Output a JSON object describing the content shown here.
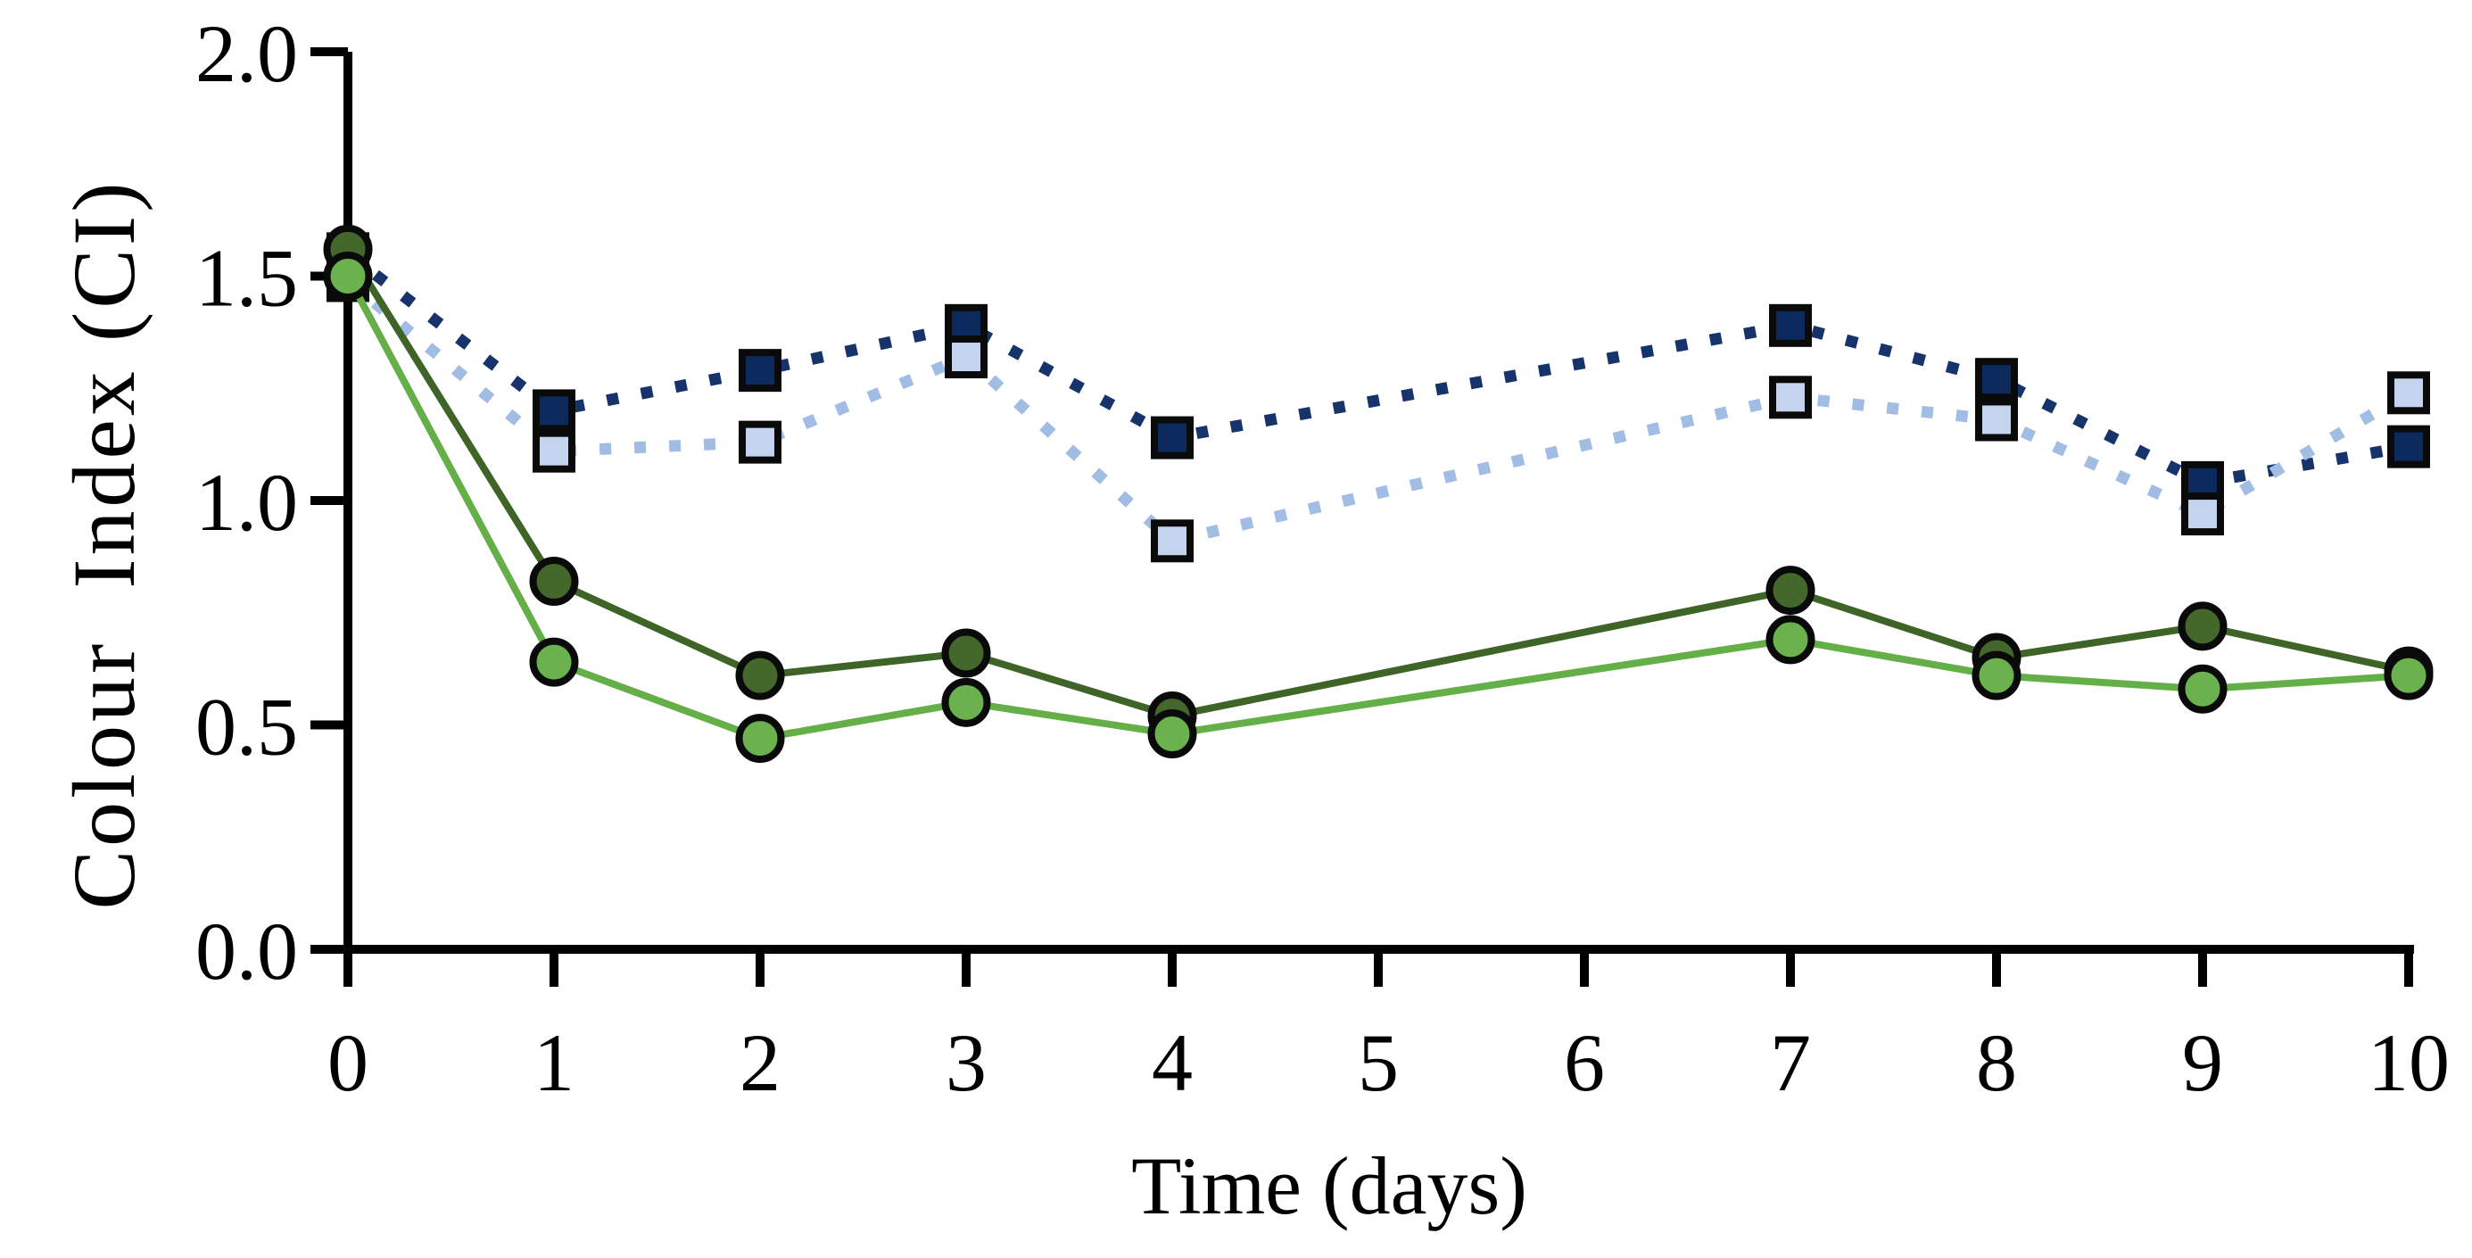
{
  "chart_data": {
    "type": "line",
    "title": "",
    "xlabel": "Time (days)",
    "ylabel": "Colour  Index (CI)",
    "xlim": [
      0,
      10
    ],
    "ylim": [
      0.0,
      2.0
    ],
    "grid": false,
    "legend": "none",
    "x_ticks": [
      0,
      1,
      2,
      3,
      4,
      5,
      6,
      7,
      8,
      9,
      10
    ],
    "x_tick_labels": [
      "0",
      "1",
      "2",
      "3",
      "4",
      "5",
      "6",
      "7",
      "8",
      "9",
      "10"
    ],
    "y_ticks": [
      2.0,
      1.5,
      1.0,
      0.5,
      0.0
    ],
    "y_tick_labels": [
      "2.0",
      "1.5",
      "1.0",
      "0.5",
      "0.0"
    ],
    "x": [
      0,
      1,
      2,
      3,
      4,
      7,
      8,
      9,
      10
    ],
    "series": [
      {
        "name": "navy-squares-dotted",
        "marker": "square",
        "line_style": "dotted",
        "line_color": "#16336b",
        "marker_fill": "#0d2a5e",
        "marker_edge": "#0a0a0a",
        "values": [
          1.55,
          1.2,
          1.29,
          1.39,
          1.14,
          1.39,
          1.27,
          1.04,
          1.12
        ]
      },
      {
        "name": "light-blue-squares-dotted",
        "marker": "square",
        "line_style": "dotted",
        "line_color": "#a2bde4",
        "marker_fill": "#c4d4ee",
        "marker_edge": "#0a0a0a",
        "values": [
          1.49,
          1.11,
          1.13,
          1.32,
          0.91,
          1.23,
          1.18,
          0.97,
          1.24
        ]
      },
      {
        "name": "dark-green-circles-solid",
        "marker": "circle",
        "line_style": "solid",
        "line_color": "#3e6527",
        "marker_fill": "#44672c",
        "marker_edge": "#0a0a0a",
        "values": [
          1.56,
          0.82,
          0.61,
          0.66,
          0.52,
          0.8,
          0.65,
          0.72,
          0.62
        ]
      },
      {
        "name": "light-green-circles-solid",
        "marker": "circle",
        "line_style": "solid",
        "line_color": "#64af47",
        "marker_fill": "#6bb24e",
        "marker_edge": "#0a0a0a",
        "values": [
          1.5,
          0.64,
          0.47,
          0.55,
          0.48,
          0.69,
          0.61,
          0.58,
          0.61
        ]
      }
    ]
  }
}
